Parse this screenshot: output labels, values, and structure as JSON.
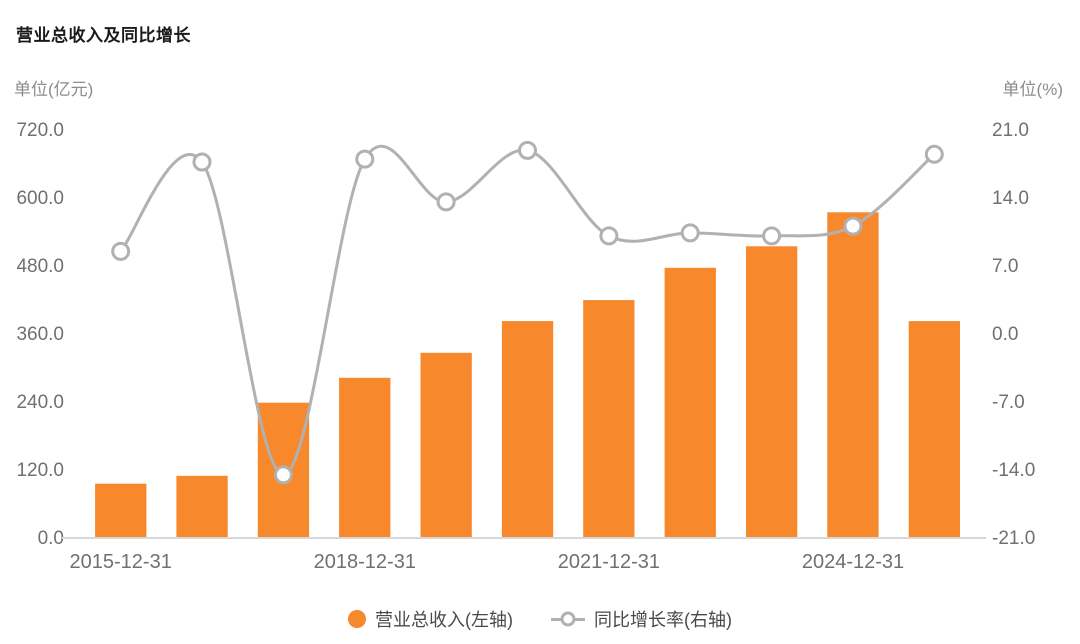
{
  "title": "营业总收入及同比增长",
  "axes": {
    "left_unit": "单位(亿元)",
    "right_unit": "单位(%)"
  },
  "legend": {
    "bar_label": "营业总收入(左轴)",
    "line_label": "同比增长率(右轴)"
  },
  "colors": {
    "bar": "#F7882B",
    "line": "#B1B1B1",
    "axis_text": "#707070",
    "unit_text": "#8C8C8C",
    "axis_line": "#D8D8D8",
    "title_text": "#1A1A1A",
    "legend_text": "#4A4A4A"
  },
  "chart_data": {
    "type": "bar+line",
    "title": "营业总收入及同比增长",
    "num_points": 11,
    "grid": false,
    "legend_position": "bottom-center",
    "x_tick_labels": [
      "2015-12-31",
      "2018-12-31",
      "2021-12-31",
      "2024-12-31"
    ],
    "x_tick_indices": [
      0,
      3,
      6,
      9
    ],
    "left_axis": {
      "unit": "单位(亿元)",
      "tick_labels": [
        "720.0",
        "600.0",
        "480.0",
        "360.0",
        "240.0",
        "120.0",
        "0.0"
      ],
      "min": 0,
      "max": 720
    },
    "right_axis": {
      "unit": "单位(%)",
      "tick_labels": [
        "21.0",
        "14.0",
        "7.0",
        "0.0",
        "-7.0",
        "-14.0",
        "-21.0"
      ],
      "min": -21,
      "max": 21
    },
    "series": [
      {
        "name": "营业总收入(左轴)",
        "type": "bar",
        "axis": "left",
        "values": [
          94,
          108,
          237,
          281,
          325,
          381,
          418,
          475,
          513,
          573,
          381
        ]
      },
      {
        "name": "同比增长率(右轴)",
        "type": "line",
        "axis": "right",
        "values": [
          8.4,
          17.6,
          -14.6,
          17.9,
          13.5,
          18.8,
          10.0,
          10.3,
          10.0,
          11.0,
          18.4
        ]
      }
    ]
  }
}
